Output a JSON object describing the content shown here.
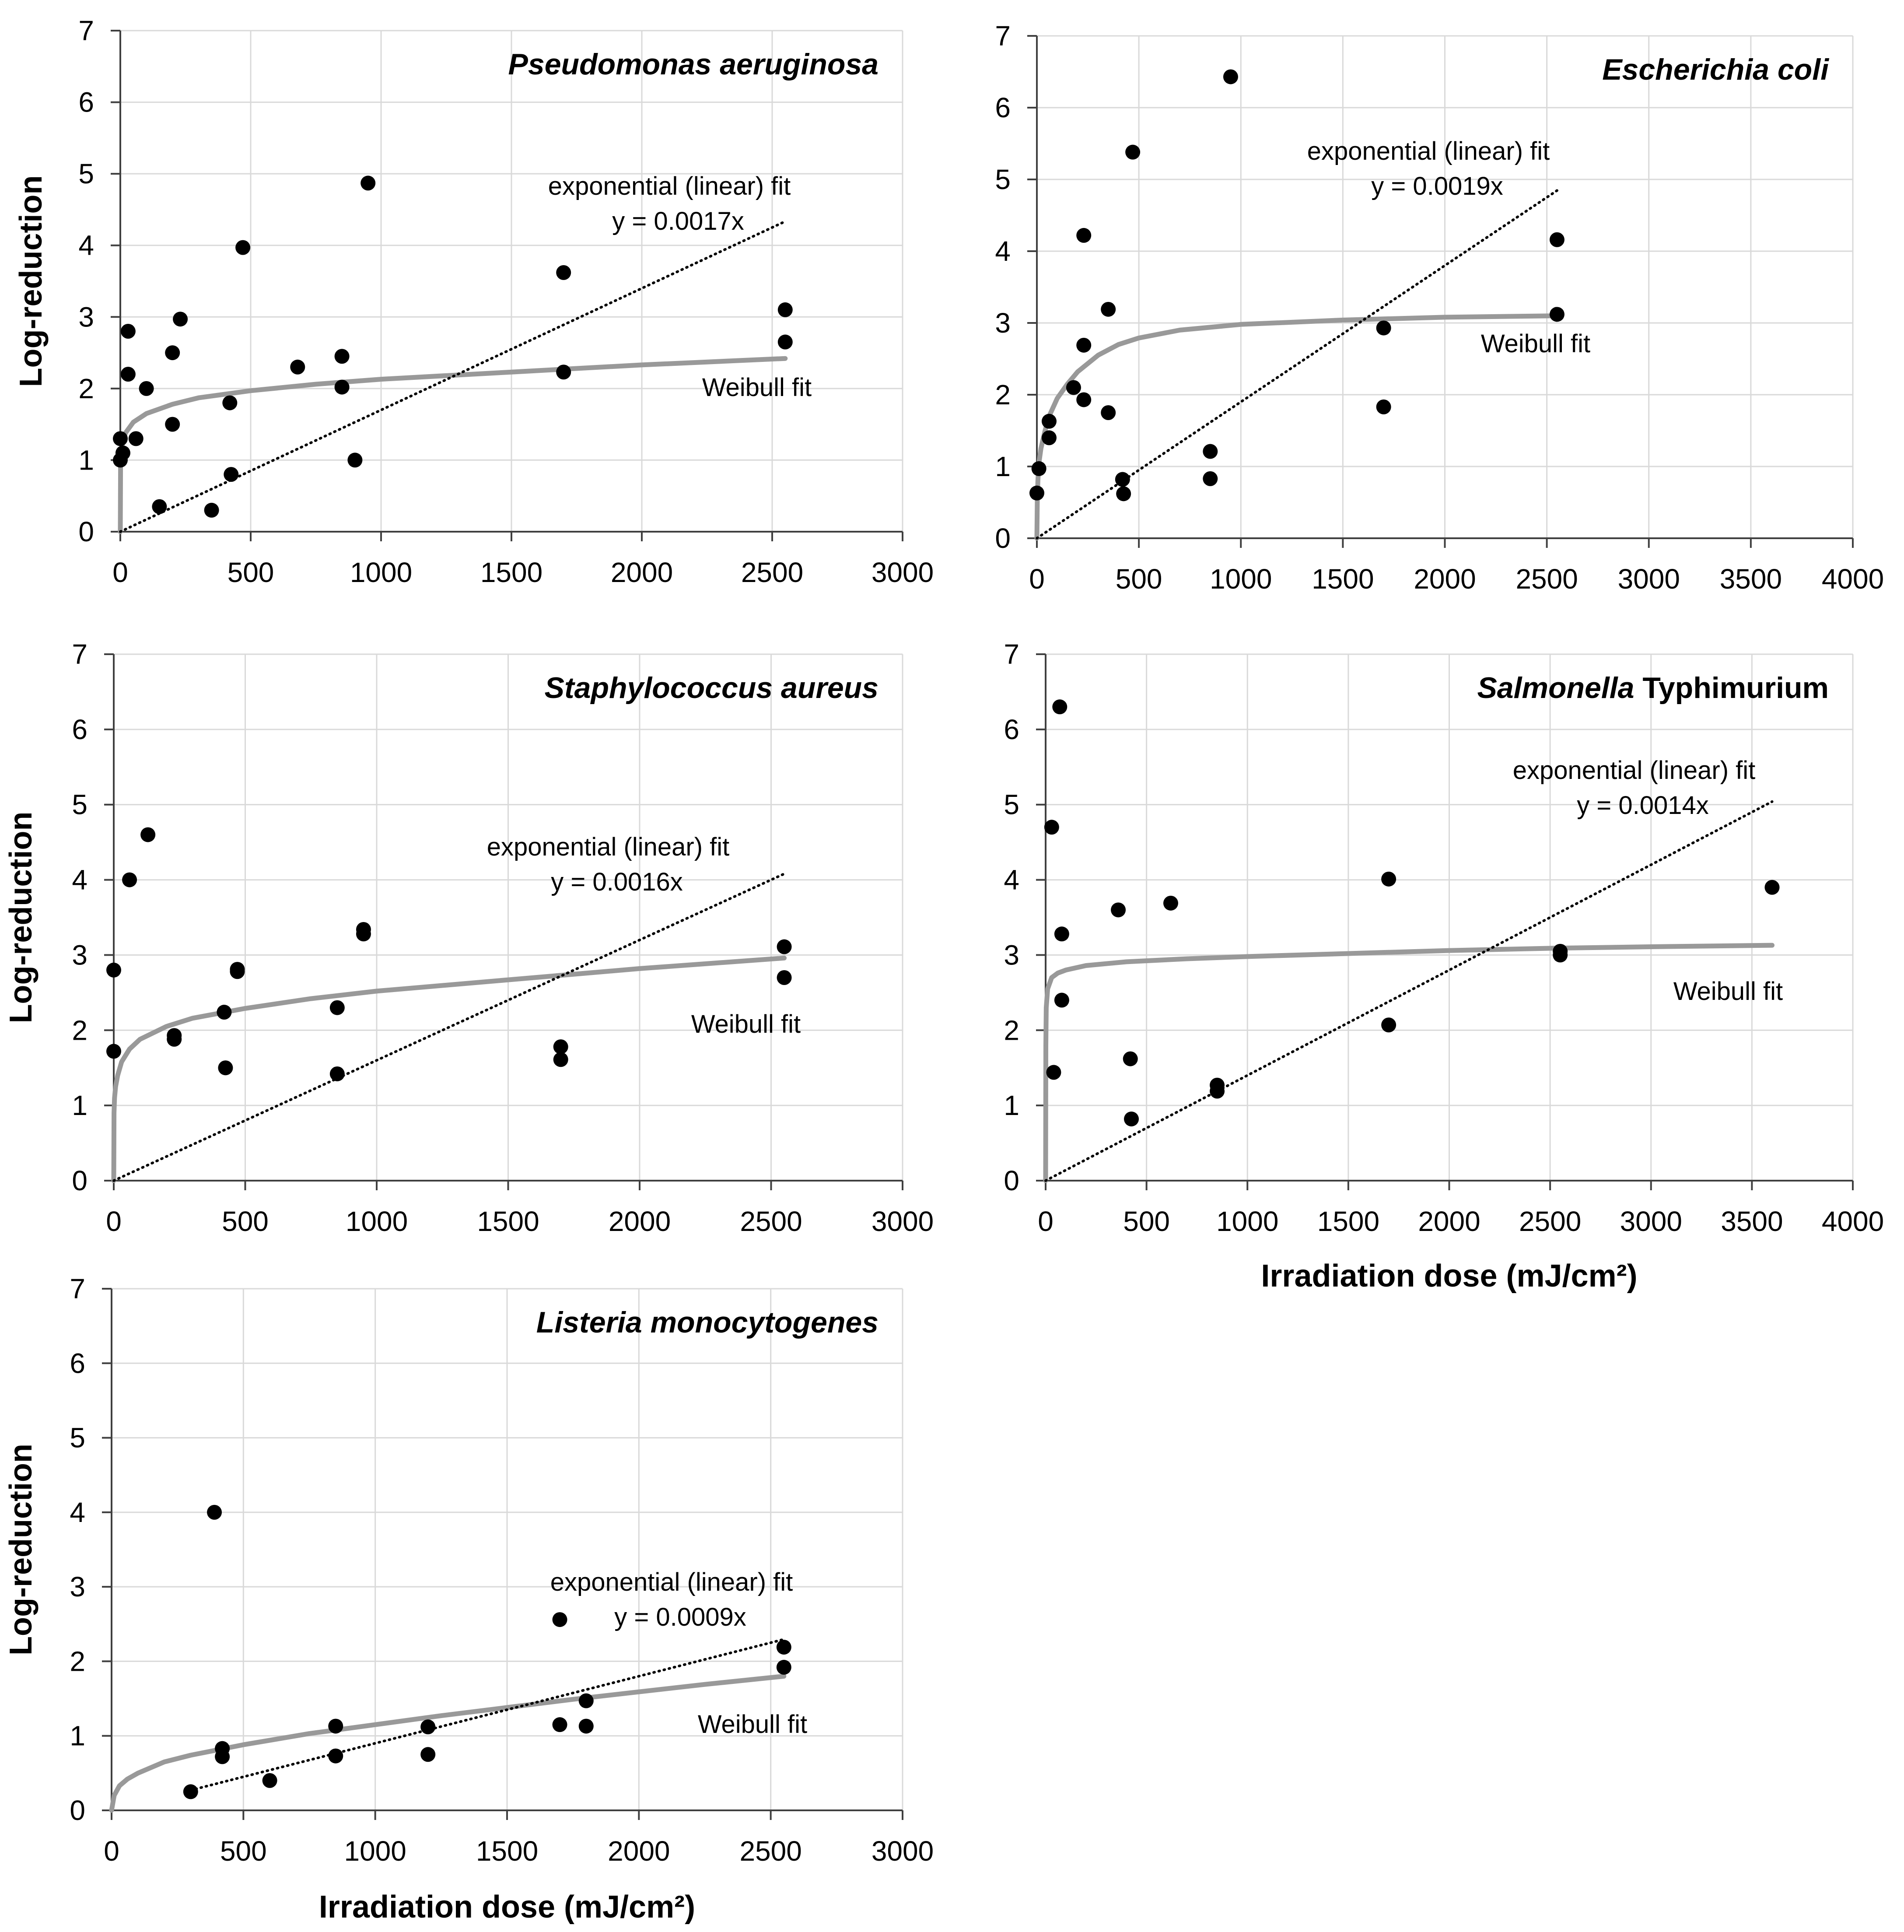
{
  "chart_data": [
    {
      "id": "pa",
      "type": "scatter",
      "title": "Pseudomonas aeruginosa",
      "title_parts": [
        {
          "text": "Pseudomonas aeruginosa",
          "italic": true
        }
      ],
      "xlabel": "",
      "ylabel": "Log-reduction",
      "xlim": [
        0,
        3000
      ],
      "ylim": [
        0,
        7
      ],
      "xticks": [
        0,
        500,
        1000,
        1500,
        2000,
        2500,
        3000
      ],
      "yticks": [
        0,
        1,
        2,
        3,
        4,
        5,
        6,
        7
      ],
      "grid": true,
      "points": [
        [
          0,
          1.0
        ],
        [
          0,
          1.3
        ],
        [
          10,
          1.1
        ],
        [
          30,
          2.8
        ],
        [
          30,
          2.2
        ],
        [
          60,
          1.3
        ],
        [
          100,
          2.0
        ],
        [
          150,
          0.35
        ],
        [
          200,
          2.5
        ],
        [
          200,
          1.5
        ],
        [
          230,
          2.97
        ],
        [
          350,
          0.3
        ],
        [
          420,
          1.8
        ],
        [
          425,
          0.8
        ],
        [
          470,
          3.97
        ],
        [
          680,
          2.3
        ],
        [
          850,
          2.45
        ],
        [
          850,
          2.02
        ],
        [
          900,
          1.0
        ],
        [
          950,
          4.87
        ],
        [
          1700,
          3.62
        ],
        [
          1700,
          2.23
        ],
        [
          2550,
          3.1
        ],
        [
          2550,
          2.65
        ]
      ],
      "linear_fit": {
        "slope": 0.0017,
        "x_max": 2550,
        "label": "exponential (linear) fit",
        "equation": "y = 0.0017x"
      },
      "weibull_fit": {
        "label": "Weibull fit",
        "x_max": 2550,
        "points": [
          [
            0,
            0
          ],
          [
            1,
            0.92
          ],
          [
            2,
            1.02
          ],
          [
            5,
            1.15
          ],
          [
            10,
            1.26
          ],
          [
            20,
            1.38
          ],
          [
            50,
            1.53
          ],
          [
            100,
            1.65
          ],
          [
            200,
            1.78
          ],
          [
            300,
            1.87
          ],
          [
            500,
            1.97
          ],
          [
            750,
            2.06
          ],
          [
            1000,
            2.13
          ],
          [
            1500,
            2.23
          ],
          [
            2000,
            2.33
          ],
          [
            2550,
            2.42
          ]
        ]
      }
    },
    {
      "id": "ec",
      "type": "scatter",
      "title": "Escherichia coli",
      "title_parts": [
        {
          "text": "Escherichia coli",
          "italic": true
        }
      ],
      "xlabel": "",
      "ylabel": "",
      "xlim": [
        0,
        4000
      ],
      "ylim": [
        0,
        7
      ],
      "xticks": [
        0,
        500,
        1000,
        1500,
        2000,
        2500,
        3000,
        3500,
        4000
      ],
      "yticks": [
        0,
        1,
        2,
        3,
        4,
        5,
        6,
        7
      ],
      "grid": true,
      "points": [
        [
          0,
          0.63
        ],
        [
          10,
          0.97
        ],
        [
          60,
          1.63
        ],
        [
          60,
          1.4
        ],
        [
          180,
          2.1
        ],
        [
          230,
          4.22
        ],
        [
          230,
          2.69
        ],
        [
          230,
          1.93
        ],
        [
          350,
          3.19
        ],
        [
          350,
          1.75
        ],
        [
          420,
          0.82
        ],
        [
          425,
          0.62
        ],
        [
          470,
          5.38
        ],
        [
          850,
          1.21
        ],
        [
          850,
          0.83
        ],
        [
          950,
          6.43
        ],
        [
          1700,
          2.93
        ],
        [
          1700,
          1.83
        ],
        [
          2550,
          4.16
        ],
        [
          2550,
          3.12
        ]
      ],
      "linear_fit": {
        "slope": 0.0019,
        "x_max": 2550,
        "label": "exponential (linear) fit",
        "equation": "y = 0.0019x"
      },
      "weibull_fit": {
        "label": "Weibull fit",
        "x_max": 2550,
        "points": [
          [
            0,
            0
          ],
          [
            2,
            0.5
          ],
          [
            5,
            0.8
          ],
          [
            10,
            1.05
          ],
          [
            20,
            1.25
          ],
          [
            40,
            1.5
          ],
          [
            60,
            1.7
          ],
          [
            100,
            1.95
          ],
          [
            150,
            2.15
          ],
          [
            200,
            2.32
          ],
          [
            300,
            2.55
          ],
          [
            400,
            2.7
          ],
          [
            500,
            2.79
          ],
          [
            700,
            2.9
          ],
          [
            1000,
            2.98
          ],
          [
            1500,
            3.04
          ],
          [
            2000,
            3.08
          ],
          [
            2550,
            3.1
          ]
        ]
      }
    },
    {
      "id": "sa",
      "type": "scatter",
      "title": "Staphylococcus aureus",
      "title_parts": [
        {
          "text": "Staphylococcus aureus",
          "italic": true
        }
      ],
      "xlabel": "",
      "ylabel": "Log-reduction",
      "xlim": [
        0,
        3000
      ],
      "ylim": [
        0,
        7
      ],
      "xticks": [
        0,
        500,
        1000,
        1500,
        2000,
        2500,
        3000
      ],
      "yticks": [
        0,
        1,
        2,
        3,
        4,
        5,
        6,
        7
      ],
      "grid": true,
      "points": [
        [
          0,
          2.8
        ],
        [
          0,
          1.72
        ],
        [
          60,
          4.0
        ],
        [
          130,
          4.6
        ],
        [
          230,
          1.93
        ],
        [
          230,
          1.88
        ],
        [
          420,
          2.24
        ],
        [
          425,
          1.5
        ],
        [
          470,
          2.81
        ],
        [
          470,
          2.78
        ],
        [
          850,
          2.3
        ],
        [
          850,
          1.42
        ],
        [
          950,
          3.34
        ],
        [
          950,
          3.28
        ],
        [
          1700,
          1.78
        ],
        [
          1700,
          1.61
        ],
        [
          2550,
          3.11
        ],
        [
          2550,
          2.7
        ]
      ],
      "linear_fit": {
        "slope": 0.0016,
        "x_max": 2550,
        "label": "exponential (linear) fit",
        "equation": "y = 0.0016x"
      },
      "weibull_fit": {
        "label": "Weibull fit",
        "x_max": 2550,
        "points": [
          [
            0,
            0
          ],
          [
            1,
            0.9
          ],
          [
            3,
            1.1
          ],
          [
            7,
            1.25
          ],
          [
            15,
            1.4
          ],
          [
            30,
            1.58
          ],
          [
            60,
            1.75
          ],
          [
            100,
            1.88
          ],
          [
            200,
            2.05
          ],
          [
            300,
            2.16
          ],
          [
            500,
            2.29
          ],
          [
            750,
            2.42
          ],
          [
            1000,
            2.52
          ],
          [
            1500,
            2.67
          ],
          [
            2000,
            2.82
          ],
          [
            2550,
            2.96
          ]
        ]
      }
    },
    {
      "id": "st",
      "type": "scatter",
      "title": "Salmonella Typhimurium",
      "title_parts": [
        {
          "text": "Salmonella",
          "italic": true
        },
        {
          "text": " Typhimurium",
          "italic": false
        }
      ],
      "xlabel": "Irradiation dose (mJ/cm²)",
      "ylabel": "",
      "xlim": [
        0,
        4000
      ],
      "ylim": [
        0,
        7
      ],
      "xticks": [
        0,
        500,
        1000,
        1500,
        2000,
        2500,
        3000,
        3500,
        4000
      ],
      "yticks": [
        0,
        1,
        2,
        3,
        4,
        5,
        6,
        7
      ],
      "grid": true,
      "points": [
        [
          30,
          4.7
        ],
        [
          40,
          1.44
        ],
        [
          70,
          6.3
        ],
        [
          80,
          3.28
        ],
        [
          80,
          2.4
        ],
        [
          360,
          3.6
        ],
        [
          420,
          1.62
        ],
        [
          425,
          0.82
        ],
        [
          620,
          3.69
        ],
        [
          850,
          1.27
        ],
        [
          850,
          1.19
        ],
        [
          1700,
          4.01
        ],
        [
          1700,
          2.07
        ],
        [
          2550,
          3.05
        ],
        [
          2550,
          3.0
        ],
        [
          3600,
          3.9
        ]
      ],
      "linear_fit": {
        "slope": 0.0014,
        "x_max": 3600,
        "label": "exponential (linear) fit",
        "equation": "y = 0.0014x"
      },
      "weibull_fit": {
        "label": "Weibull fit",
        "x_max": 3600,
        "points": [
          [
            0,
            0
          ],
          [
            1,
            1.8
          ],
          [
            3,
            2.3
          ],
          [
            10,
            2.55
          ],
          [
            30,
            2.7
          ],
          [
            60,
            2.76
          ],
          [
            100,
            2.8
          ],
          [
            200,
            2.86
          ],
          [
            400,
            2.91
          ],
          [
            700,
            2.95
          ],
          [
            1000,
            2.98
          ],
          [
            1500,
            3.02
          ],
          [
            2000,
            3.06
          ],
          [
            2500,
            3.09
          ],
          [
            3000,
            3.11
          ],
          [
            3600,
            3.13
          ]
        ]
      }
    },
    {
      "id": "lm",
      "type": "scatter",
      "title": "Listeria monocytogenes",
      "title_parts": [
        {
          "text": "Listeria monocytogenes",
          "italic": true
        }
      ],
      "xlabel": "Irradiation dose (mJ/cm²)",
      "ylabel": "Log-reduction",
      "xlim": [
        0,
        3000
      ],
      "ylim": [
        0,
        7
      ],
      "xticks": [
        0,
        500,
        1000,
        1500,
        2000,
        2500,
        3000
      ],
      "yticks": [
        0,
        1,
        2,
        3,
        4,
        5,
        6,
        7
      ],
      "grid": true,
      "points": [
        [
          300,
          0.25
        ],
        [
          390,
          4.0
        ],
        [
          420,
          0.83
        ],
        [
          420,
          0.72
        ],
        [
          600,
          0.4
        ],
        [
          850,
          1.13
        ],
        [
          850,
          0.73
        ],
        [
          1200,
          1.12
        ],
        [
          1200,
          0.75
        ],
        [
          1700,
          2.56
        ],
        [
          1700,
          1.15
        ],
        [
          1800,
          1.47
        ],
        [
          1800,
          1.13
        ],
        [
          2550,
          2.19
        ],
        [
          2550,
          1.92
        ]
      ],
      "linear_fit": {
        "slope": 0.0009,
        "x_min": 300,
        "x_max": 2550,
        "label": "exponential (linear) fit",
        "equation": "y = 0.0009x"
      },
      "weibull_fit": {
        "label": "Weibull fit",
        "x_max": 2550,
        "points": [
          [
            0,
            0
          ],
          [
            10,
            0.2
          ],
          [
            30,
            0.33
          ],
          [
            60,
            0.42
          ],
          [
            100,
            0.5
          ],
          [
            200,
            0.65
          ],
          [
            300,
            0.74
          ],
          [
            500,
            0.88
          ],
          [
            750,
            1.03
          ],
          [
            1000,
            1.15
          ],
          [
            1250,
            1.27
          ],
          [
            1500,
            1.38
          ],
          [
            1750,
            1.49
          ],
          [
            2000,
            1.59
          ],
          [
            2250,
            1.69
          ],
          [
            2550,
            1.8
          ]
        ]
      }
    }
  ]
}
